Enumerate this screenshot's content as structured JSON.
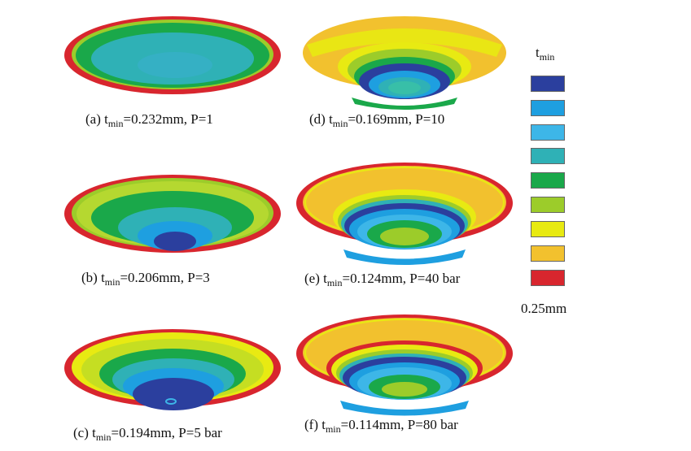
{
  "panels": [
    {
      "id": "a",
      "caption_prefix": "(a) t",
      "caption_sub": "min",
      "caption_rest": "=0.232mm, P=1"
    },
    {
      "id": "b",
      "caption_prefix": "(b) t",
      "caption_sub": "min",
      "caption_rest": "=0.206mm, P=3"
    },
    {
      "id": "c",
      "caption_prefix": "(c) t",
      "caption_sub": "min",
      "caption_rest": "=0.194mm, P=5 bar"
    },
    {
      "id": "d",
      "caption_prefix": "(d) t",
      "caption_sub": "min",
      "caption_rest": "=0.169mm, P=10"
    },
    {
      "id": "e",
      "caption_prefix": "(e) t",
      "caption_sub": "min",
      "caption_rest": "=0.124mm, P=40 bar"
    },
    {
      "id": "f",
      "caption_prefix": "(f) t",
      "caption_sub": "min",
      "caption_rest": "=0.114mm, P=80 bar"
    }
  ],
  "legend": {
    "title_main": "t",
    "title_sub": "min",
    "bottom_label": "0.25mm",
    "colors": [
      "#2b3f9e",
      "#1e9fe0",
      "#3db6e8",
      "#2fb1b6",
      "#1aa84a",
      "#9ccc2a",
      "#e8ea12",
      "#f2c12e",
      "#d8262e"
    ]
  },
  "palette": {
    "dark_blue": "#2b3f9e",
    "blue": "#1e9fe0",
    "light_blue": "#3db6e8",
    "teal": "#2fb1b6",
    "green": "#1aa84a",
    "lime": "#9ccc2a",
    "yellow": "#e8ea12",
    "orange": "#f2c12e",
    "red": "#d8262e"
  }
}
